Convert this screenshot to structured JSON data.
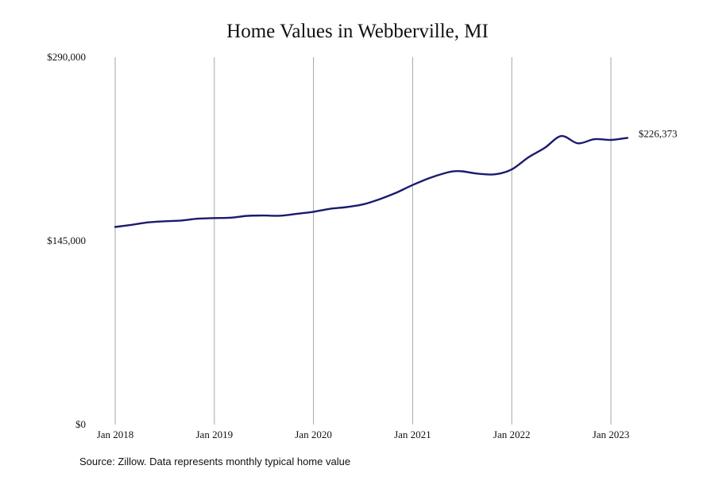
{
  "chart_data": {
    "type": "line",
    "title": "Home Values in Webberville, MI",
    "source": "Source: Zillow. Data represents monthly typical home value",
    "xlabel": "",
    "ylabel": "",
    "x_ticks": [
      {
        "label": "Jan 2018",
        "date": "2018-01"
      },
      {
        "label": "Jan 2019",
        "date": "2019-01"
      },
      {
        "label": "Jan 2020",
        "date": "2020-01"
      },
      {
        "label": "Jan 2021",
        "date": "2021-01"
      },
      {
        "label": "Jan 2022",
        "date": "2022-01"
      },
      {
        "label": "Jan 2023",
        "date": "2023-01"
      }
    ],
    "y_ticks": [
      {
        "label": "$290,000",
        "value": 290000
      },
      {
        "label": "$145,000",
        "value": 145000
      },
      {
        "label": "$0",
        "value": 0
      }
    ],
    "ylim": [
      0,
      290000
    ],
    "xlim": [
      "2018-01",
      "2023-01"
    ],
    "grid": "vertical lines at x ticks",
    "series": [
      {
        "color": "#1b1a6e",
        "end_label": "$226,373",
        "points": [
          {
            "x": "2018-01",
            "y": 156000
          },
          {
            "x": "2018-03",
            "y": 157700
          },
          {
            "x": "2018-05",
            "y": 159600
          },
          {
            "x": "2018-07",
            "y": 160500
          },
          {
            "x": "2018-09",
            "y": 161100
          },
          {
            "x": "2018-11",
            "y": 162500
          },
          {
            "x": "2019-01",
            "y": 163000
          },
          {
            "x": "2019-03",
            "y": 163300
          },
          {
            "x": "2019-05",
            "y": 164800
          },
          {
            "x": "2019-07",
            "y": 165000
          },
          {
            "x": "2019-09",
            "y": 164900
          },
          {
            "x": "2019-11",
            "y": 166400
          },
          {
            "x": "2020-01",
            "y": 168000
          },
          {
            "x": "2020-03",
            "y": 170300
          },
          {
            "x": "2020-05",
            "y": 171700
          },
          {
            "x": "2020-07",
            "y": 173800
          },
          {
            "x": "2020-09",
            "y": 177900
          },
          {
            "x": "2020-11",
            "y": 183000
          },
          {
            "x": "2021-01",
            "y": 189100
          },
          {
            "x": "2021-03",
            "y": 194500
          },
          {
            "x": "2021-05",
            "y": 198700
          },
          {
            "x": "2021-06",
            "y": 200000
          },
          {
            "x": "2021-07",
            "y": 199900
          },
          {
            "x": "2021-09",
            "y": 198000
          },
          {
            "x": "2021-11",
            "y": 197600
          },
          {
            "x": "2022-01",
            "y": 201400
          },
          {
            "x": "2022-03",
            "y": 210900
          },
          {
            "x": "2022-05",
            "y": 218500
          },
          {
            "x": "2022-07",
            "y": 227800
          },
          {
            "x": "2022-09",
            "y": 222000
          },
          {
            "x": "2022-11",
            "y": 225300
          },
          {
            "x": "2023-01",
            "y": 224700
          },
          {
            "x": "2023-03",
            "y": 226373
          }
        ]
      }
    ]
  }
}
